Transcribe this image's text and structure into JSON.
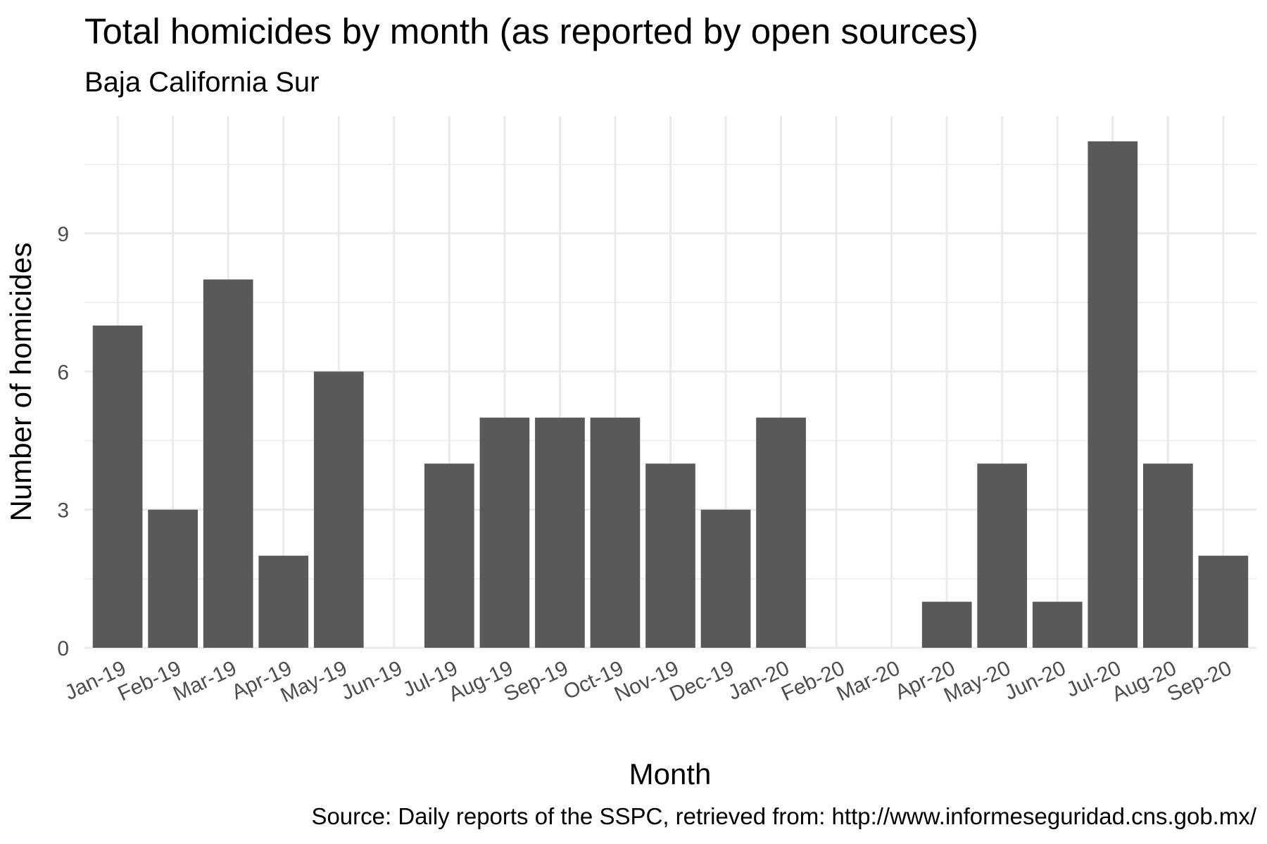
{
  "chart_data": {
    "type": "bar",
    "title": "Total homicides by month (as reported by open sources)",
    "subtitle": "Baja California Sur",
    "xlabel": "Month",
    "ylabel": "Number of homicides",
    "caption": "Source: Daily reports of the SSPC, retrieved from: http://www.informeseguridad.cns.gob.mx/",
    "categories": [
      "Jan-19",
      "Feb-19",
      "Mar-19",
      "Apr-19",
      "May-19",
      "Jun-19",
      "Jul-19",
      "Aug-19",
      "Sep-19",
      "Oct-19",
      "Nov-19",
      "Dec-19",
      "Jan-20",
      "Feb-20",
      "Mar-20",
      "Apr-20",
      "May-20",
      "Jun-20",
      "Jul-20",
      "Aug-20",
      "Sep-20"
    ],
    "values": [
      7,
      3,
      8,
      2,
      6,
      0,
      4,
      5,
      5,
      5,
      4,
      3,
      5,
      0,
      0,
      1,
      4,
      1,
      11,
      4,
      2
    ],
    "yticks": [
      0,
      3,
      6,
      9
    ],
    "ylim": [
      0,
      11.55
    ],
    "grid": true,
    "bar_color": "#595959",
    "grid_color": "#ebebeb"
  }
}
